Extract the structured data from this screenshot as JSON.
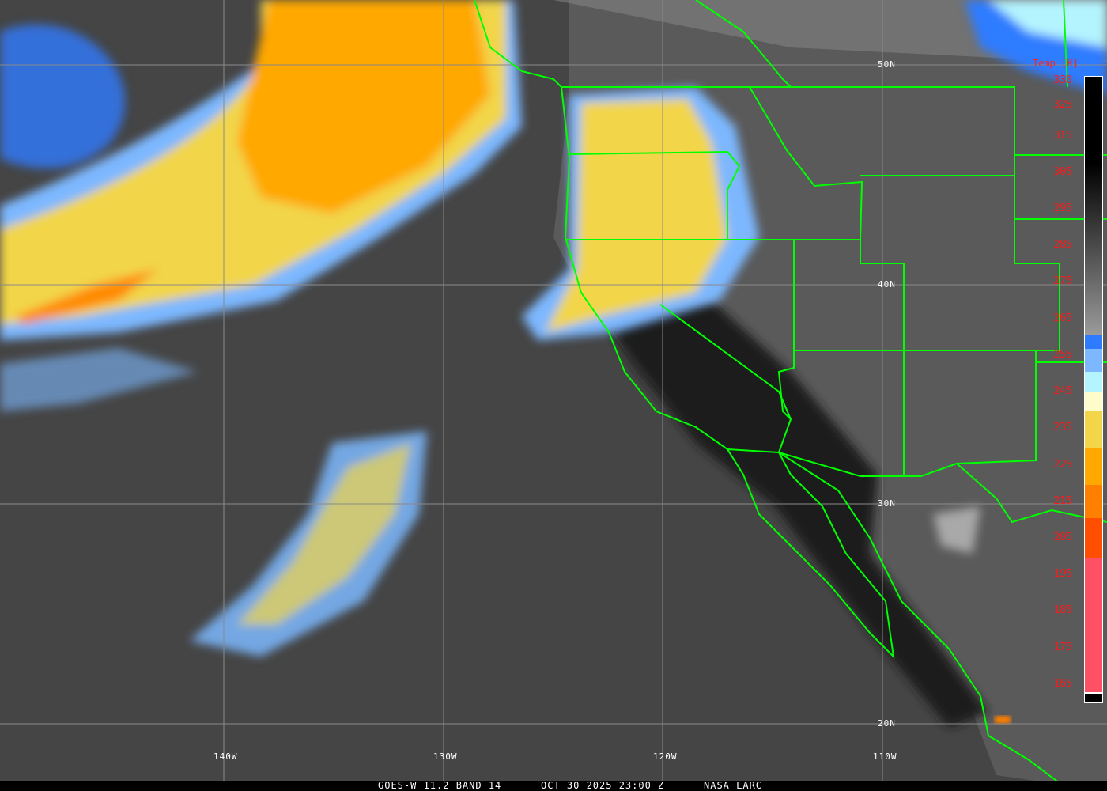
{
  "caption": {
    "satellite": "GOES-W 11.2 BAND 14",
    "datetime": "OCT 30 2025 23:00 Z",
    "source": "NASA LARC"
  },
  "latitude_labels": [
    "50N",
    "40N",
    "30N",
    "20N"
  ],
  "longitude_labels": [
    "140W",
    "130W",
    "120W",
    "110W"
  ],
  "colorbar": {
    "title": "Temp [K]",
    "ticks": [
      "330",
      "325",
      "315",
      "305",
      "295",
      "285",
      "275",
      "265",
      "255",
      "245",
      "235",
      "225",
      "215",
      "205",
      "195",
      "185",
      "175",
      "165"
    ],
    "colors": {
      "warm_black": "#000000",
      "gray": "#9a9a9a",
      "blue": "#2f7bff",
      "light_blue": "#7db8ff",
      "cyan": "#b4f4ff",
      "pale_yellow": "#fffccc",
      "yellow": "#f2d548",
      "orange": "#ffa800",
      "dark_orange": "#ff7f00",
      "red_orange": "#ff4e00",
      "pink": "#ff5064"
    }
  },
  "border_color": "#00ff00"
}
